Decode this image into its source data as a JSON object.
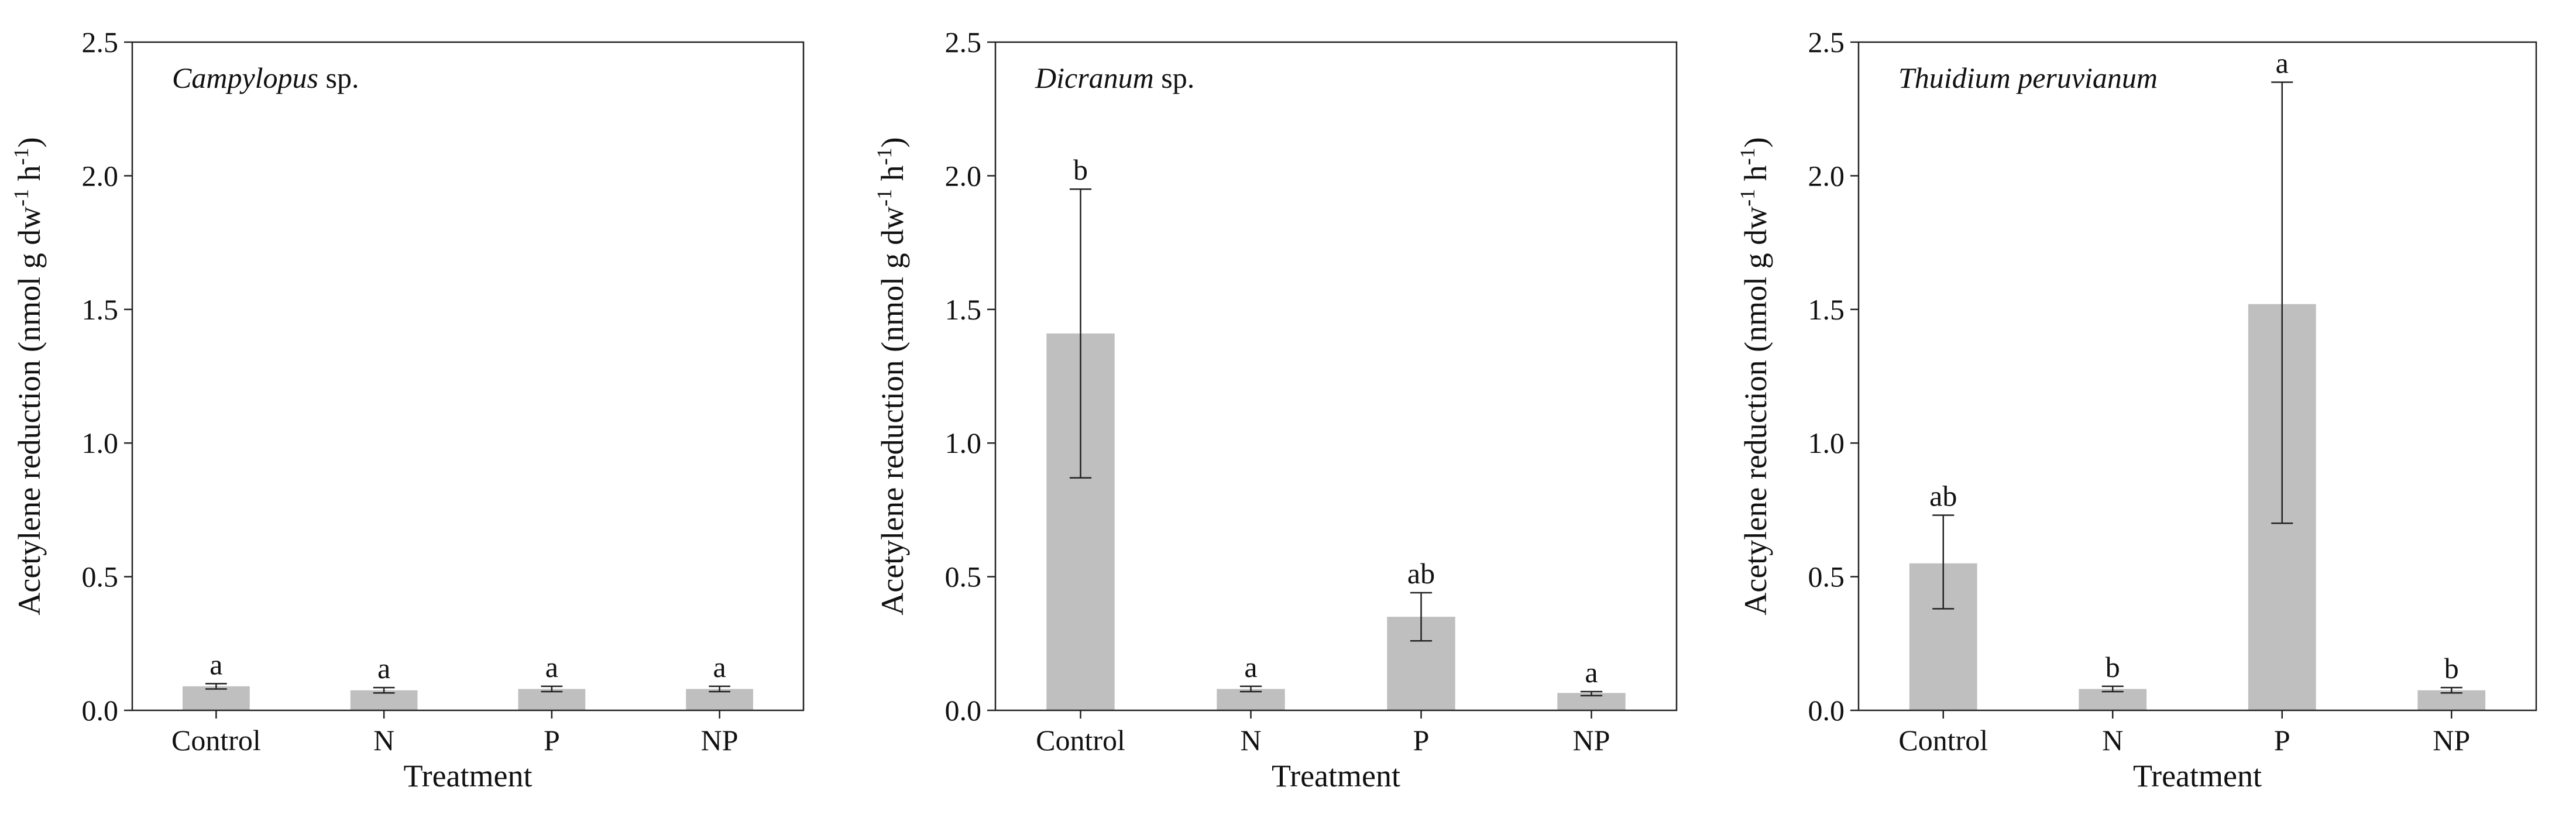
{
  "figure": {
    "x_axis_title": "Treatment",
    "y_axis_title_parts": [
      "Acetylene reduction (nmol g dw",
      "-1",
      " h",
      "-1",
      ")"
    ]
  },
  "chart_data": [
    {
      "type": "bar",
      "title_italic": "Campylopus",
      "title_rest": " sp.",
      "categories": [
        "Control",
        "N",
        "P",
        "NP"
      ],
      "values": [
        0.09,
        0.075,
        0.08,
        0.08
      ],
      "err_low": [
        0.08,
        0.065,
        0.07,
        0.07
      ],
      "err_high": [
        0.1,
        0.085,
        0.09,
        0.09
      ],
      "sig_labels": [
        "a",
        "a",
        "a",
        "a"
      ],
      "xlabel": "Treatment",
      "ylabel": "Acetylene reduction (nmol g dw-1 h-1)",
      "ylim": [
        0,
        2.5
      ],
      "yticks": [
        "0.0",
        "0.5",
        "1.0",
        "1.5",
        "2.0",
        "2.5"
      ]
    },
    {
      "type": "bar",
      "title_italic": "Dicranum",
      "title_rest": " sp.",
      "categories": [
        "Control",
        "N",
        "P",
        "NP"
      ],
      "values": [
        1.41,
        0.08,
        0.35,
        0.065
      ],
      "err_low": [
        0.87,
        0.07,
        0.26,
        0.055
      ],
      "err_high": [
        1.95,
        0.09,
        0.44,
        0.07
      ],
      "sig_labels": [
        "b",
        "a",
        "ab",
        "a"
      ],
      "xlabel": "Treatment",
      "ylabel": "Acetylene reduction (nmol g dw-1 h-1)",
      "ylim": [
        0,
        2.5
      ],
      "yticks": [
        "0.0",
        "0.5",
        "1.0",
        "1.5",
        "2.0",
        "2.5"
      ]
    },
    {
      "type": "bar",
      "title_italic": "Thuidium peruvianum",
      "title_rest": "",
      "categories": [
        "Control",
        "N",
        "P",
        "NP"
      ],
      "values": [
        0.55,
        0.08,
        1.52,
        0.075
      ],
      "err_low": [
        0.38,
        0.07,
        0.7,
        0.065
      ],
      "err_high": [
        0.73,
        0.09,
        2.35,
        0.085
      ],
      "sig_labels": [
        "ab",
        "b",
        "a",
        "b"
      ],
      "xlabel": "Treatment",
      "ylabel": "Acetylene reduction (nmol g dw-1 h-1)",
      "ylim": [
        0,
        2.5
      ],
      "yticks": [
        "0.0",
        "0.5",
        "1.0",
        "1.5",
        "2.0",
        "2.5"
      ]
    }
  ]
}
